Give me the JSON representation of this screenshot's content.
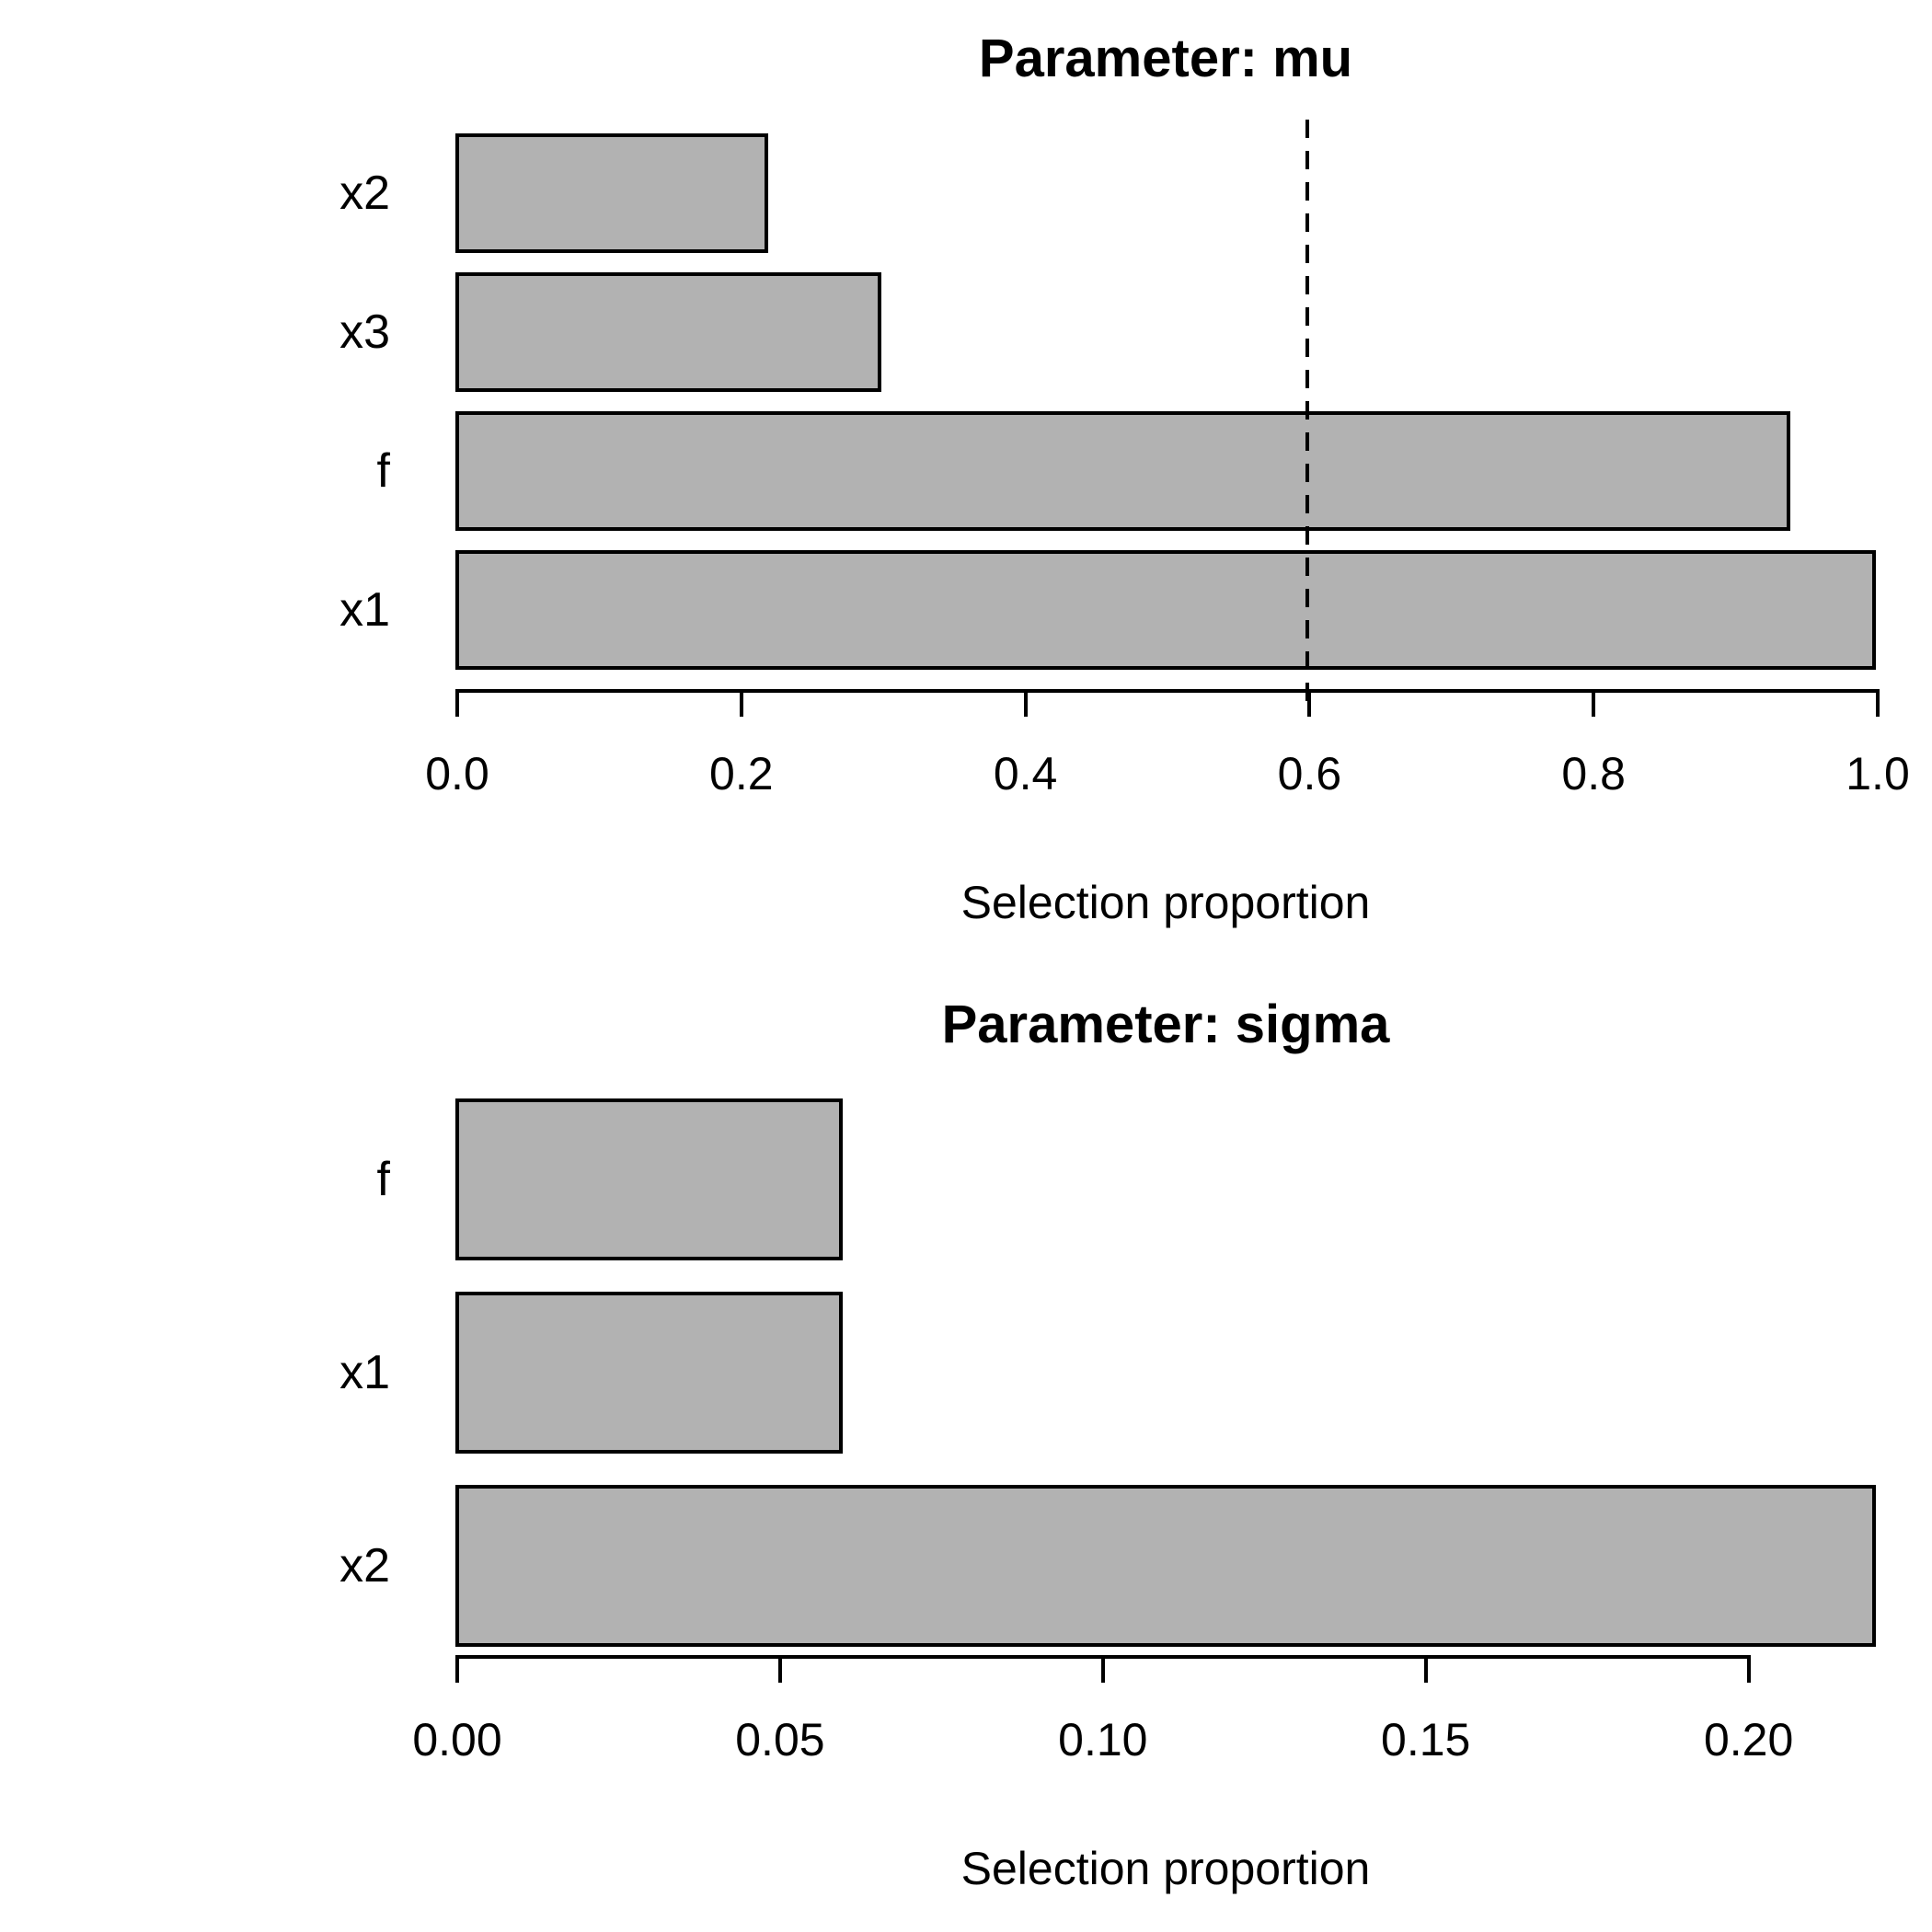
{
  "figure": {
    "background": "#ffffff",
    "text_color": "#000000"
  },
  "chart_data": [
    {
      "type": "bar",
      "orientation": "horizontal",
      "title": "Parameter: mu",
      "xlabel": "Selection proportion",
      "ylabel": "",
      "categories": [
        "x2",
        "x3",
        "f",
        "x1"
      ],
      "values": [
        0.22,
        0.3,
        0.94,
        1.0
      ],
      "xlim": [
        0,
        1.0
      ],
      "xticks": [
        0,
        0.2,
        0.4,
        0.6,
        0.8,
        1.0
      ],
      "xtick_labels": [
        "0.0",
        "0.2",
        "0.4",
        "0.6",
        "0.8",
        "1.0"
      ],
      "threshold": {
        "value": 0.6,
        "line_style": "dashed",
        "color": "#000000"
      },
      "bar_fill": "#b2b2b2",
      "bar_border": "#000000",
      "grid": false,
      "legend": null
    },
    {
      "type": "bar",
      "orientation": "horizontal",
      "title": "Parameter: sigma",
      "xlabel": "Selection proportion",
      "ylabel": "",
      "categories": [
        "f",
        "x1",
        "x2"
      ],
      "values": [
        0.06,
        0.06,
        0.22
      ],
      "xlim": [
        0,
        0.22
      ],
      "xticks": [
        0,
        0.05,
        0.1,
        0.15,
        0.2
      ],
      "xtick_labels": [
        "0.00",
        "0.05",
        "0.10",
        "0.15",
        "0.20"
      ],
      "threshold": null,
      "bar_fill": "#b2b2b2",
      "bar_border": "#000000",
      "grid": false,
      "legend": null
    }
  ]
}
